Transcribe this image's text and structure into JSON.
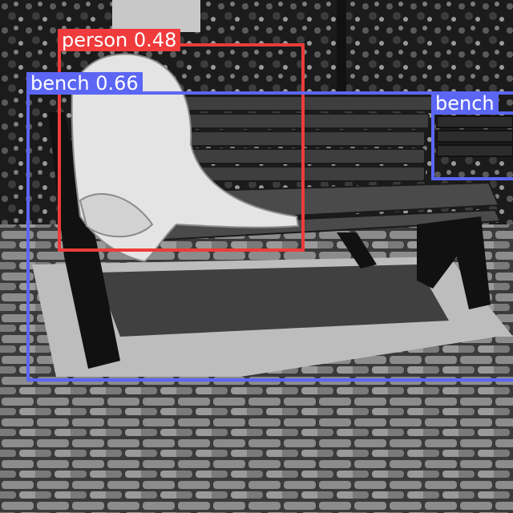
{
  "colors": {
    "person": "#ef3b3b",
    "bench": "#5b66f5"
  },
  "detections": [
    {
      "label": "person 0.48",
      "class": "person"
    },
    {
      "label": "bench 0.66",
      "class": "bench"
    },
    {
      "label": "bench",
      "class": "bench"
    }
  ]
}
